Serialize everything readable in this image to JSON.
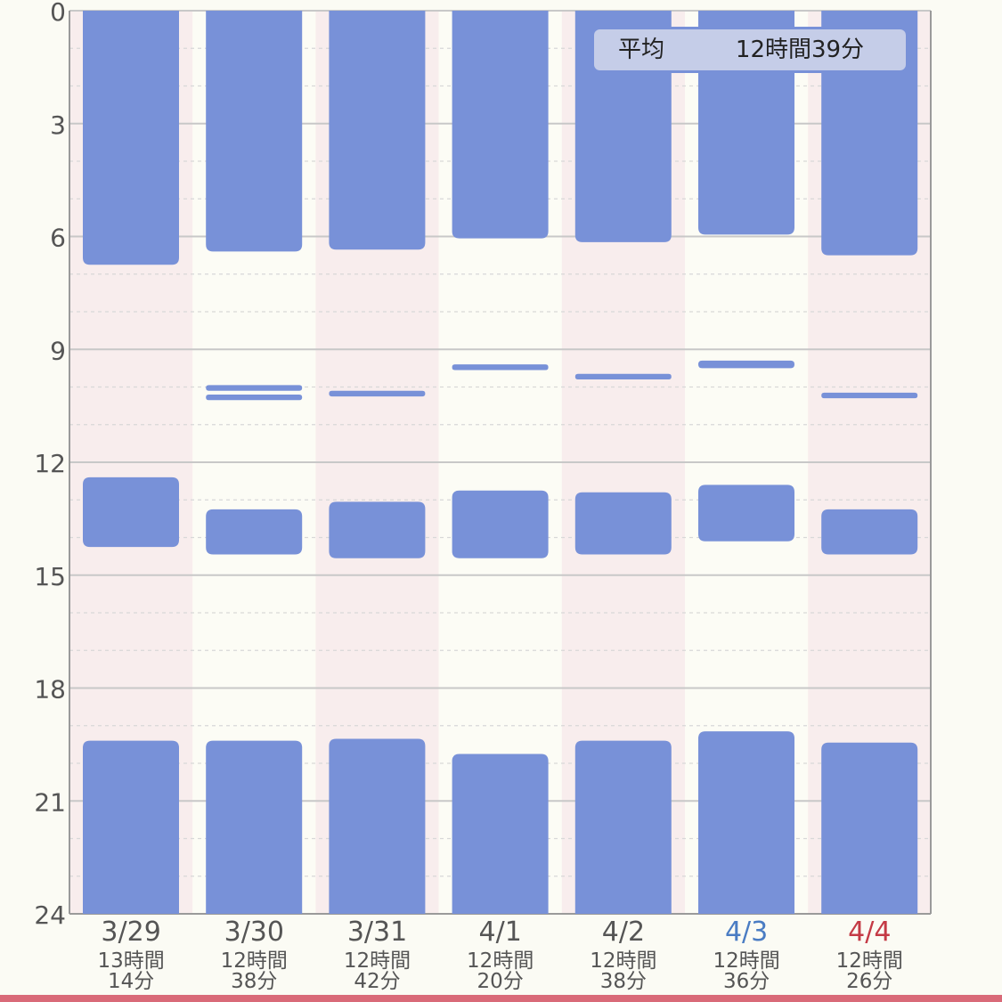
{
  "chart_data": {
    "type": "bar",
    "orientation": "vertical-ranges",
    "y_axis": {
      "range": [
        0,
        24
      ],
      "inverted": true,
      "ticks": [
        0,
        3,
        6,
        9,
        12,
        15,
        18,
        21,
        24
      ],
      "tick_labels": [
        "0",
        "3",
        "6",
        "9",
        "12",
        "15",
        "18",
        "21",
        "24"
      ]
    },
    "grid": true,
    "average": {
      "label": "平均",
      "value": "12時間39分"
    },
    "days": [
      {
        "date": "3/29",
        "total_lines": [
          "13時間",
          "14分"
        ],
        "date_style": "normal",
        "segments": [
          [
            0,
            6.75
          ],
          [
            12.4,
            14.25
          ],
          [
            19.4,
            24
          ]
        ]
      },
      {
        "date": "3/30",
        "total_lines": [
          "12時間",
          "38分"
        ],
        "date_style": "normal",
        "segments": [
          [
            0,
            6.4
          ],
          [
            9.95,
            10.1
          ],
          [
            10.2,
            10.35
          ],
          [
            13.25,
            14.45
          ],
          [
            19.4,
            24
          ]
        ]
      },
      {
        "date": "3/31",
        "total_lines": [
          "12時間",
          "42分"
        ],
        "date_style": "normal",
        "segments": [
          [
            0,
            6.35
          ],
          [
            10.1,
            10.25
          ],
          [
            13.05,
            14.55
          ],
          [
            19.35,
            24
          ]
        ]
      },
      {
        "date": "4/1",
        "total_lines": [
          "12時間",
          "20分"
        ],
        "date_style": "normal",
        "segments": [
          [
            0,
            6.05
          ],
          [
            9.4,
            9.55
          ],
          [
            12.75,
            14.55
          ],
          [
            19.75,
            24
          ]
        ]
      },
      {
        "date": "4/2",
        "total_lines": [
          "12時間",
          "38分"
        ],
        "date_style": "normal",
        "segments": [
          [
            0,
            6.15
          ],
          [
            9.65,
            9.8
          ],
          [
            12.8,
            14.45
          ],
          [
            19.4,
            24
          ]
        ]
      },
      {
        "date": "4/3",
        "total_lines": [
          "12時間",
          "36分"
        ],
        "date_style": "saturday",
        "segments": [
          [
            0,
            5.95
          ],
          [
            9.3,
            9.5
          ],
          [
            12.6,
            14.1
          ],
          [
            19.15,
            24
          ]
        ]
      },
      {
        "date": "4/4",
        "total_lines": [
          "12時間",
          "26分"
        ],
        "date_style": "sunday",
        "segments": [
          [
            0,
            6.5
          ],
          [
            10.15,
            10.3
          ],
          [
            13.25,
            14.45
          ],
          [
            19.45,
            24
          ]
        ]
      }
    ],
    "colors": {
      "bar": "#7891d8",
      "column_odd_bg": "#f8eded",
      "column_even_bg": "#fcfcf5",
      "page_bg": "#fbfbf4",
      "grid_major": "#c8c8c8",
      "grid_minor": "#d8d8d8",
      "text": "#555555",
      "saturday": "#4a7cc3",
      "sunday": "#c43a45",
      "avg_box_bg": "#c5cde8",
      "avg_box_border": "#7891d8",
      "bottom_bar": "#d96a78"
    }
  }
}
